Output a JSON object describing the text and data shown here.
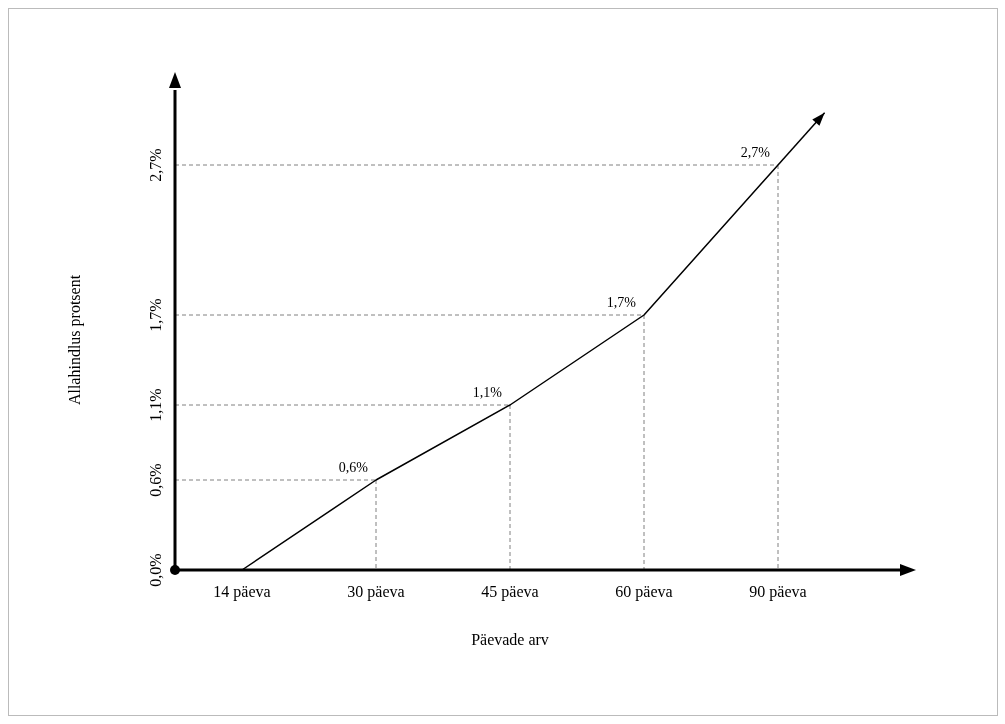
{
  "chart_data": {
    "type": "line",
    "xlabel": "Päevade arv",
    "ylabel": "Allahindlus protsent",
    "categories": [
      "14 päeva",
      "30 päeva",
      "45 päeva",
      "60 päeva",
      "90 päeva"
    ],
    "series": [
      {
        "color": "#000000",
        "values": [
          0,
          0.6,
          1.1,
          1.7,
          2.7
        ],
        "value_labels": [
          null,
          "0,6%",
          "1,1%",
          "1,7%",
          "2,7%"
        ]
      }
    ],
    "ylim": [
      0,
      3.2
    ],
    "yticks": [
      {
        "value": 0,
        "label": "0,0%"
      },
      {
        "value": 0.6,
        "label": "0,6%"
      },
      {
        "value": 1.1,
        "label": "1,1%"
      },
      {
        "value": 1.7,
        "label": "1,7%"
      },
      {
        "value": 2.7,
        "label": "2,7%"
      }
    ],
    "grid": true,
    "marker": "none",
    "line_style": "solid"
  }
}
